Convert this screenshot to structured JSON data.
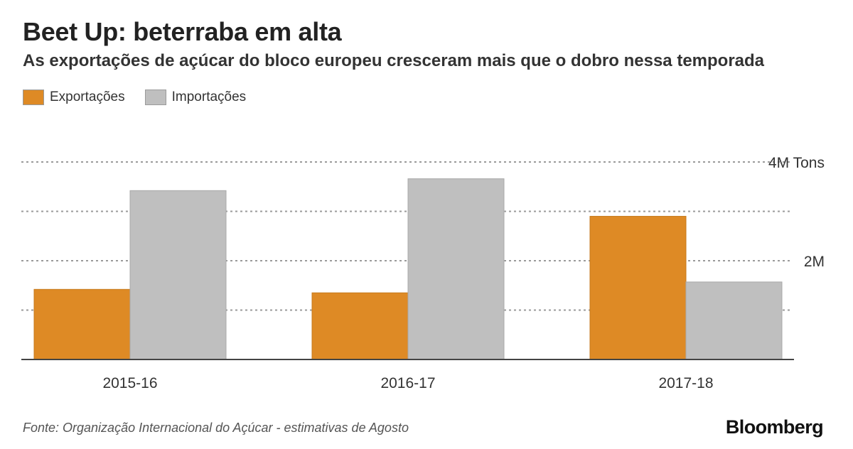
{
  "title": "Beet Up: beterraba em alta",
  "subtitle": "As exportações de açúcar do bloco europeu cresceram mais que o dobro nessa temporada",
  "source": "Fonte: Organização Internacional do Açúcar - estimativas de Agosto",
  "brand": "Bloomberg",
  "chart_data": {
    "type": "bar",
    "categories": [
      "2015-16",
      "2016-17",
      "2017-18"
    ],
    "series": [
      {
        "name": "Exportações",
        "color": "#de8a25",
        "values": [
          1.42,
          1.35,
          2.9
        ]
      },
      {
        "name": "Importações",
        "color": "#bfbfbf",
        "values": [
          3.42,
          3.66,
          1.57
        ]
      }
    ],
    "ylim": [
      0,
      4
    ],
    "gridlines": [
      1,
      2,
      3,
      4
    ],
    "ytick_labels": [
      {
        "value": 4,
        "label": "4M Tons"
      },
      {
        "value": 2,
        "label": "2M"
      }
    ],
    "legend": "top-left",
    "grid": true
  }
}
